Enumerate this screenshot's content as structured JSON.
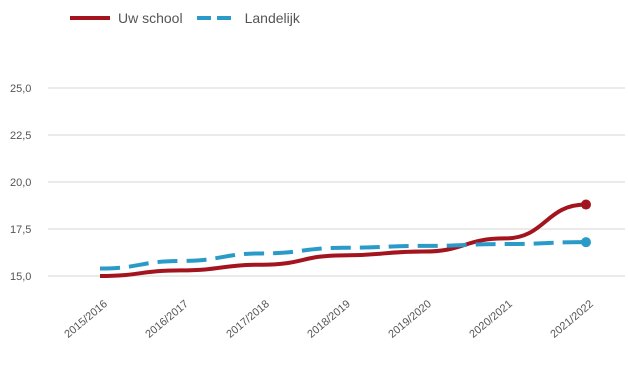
{
  "legend": {
    "school_label": "Uw school",
    "national_label": "Landelijk"
  },
  "colors": {
    "school": "#a3141f",
    "national": "#2a9bc9",
    "grid": "#e3e3e3",
    "tick_text": "#555555"
  },
  "chart_data": {
    "type": "line",
    "title": "",
    "xlabel": "",
    "ylabel": "",
    "categories": [
      "2015/2016",
      "2016/2017",
      "2017/2018",
      "2018/2019",
      "2019/2020",
      "2020/2021",
      "2021/2022"
    ],
    "ylim": [
      12.5,
      25.0
    ],
    "yticks": [
      "15,0",
      "17,5",
      "20,0",
      "22,5",
      "25,0"
    ],
    "ytick_values": [
      15.0,
      17.5,
      20.0,
      22.5,
      25.0
    ],
    "grid": true,
    "legend_position": "top-left",
    "series": [
      {
        "name": "Uw school",
        "style": "solid",
        "color": "#a3141f",
        "values": [
          15.0,
          15.3,
          15.6,
          16.1,
          16.3,
          17.0,
          18.8
        ]
      },
      {
        "name": "Landelijk",
        "style": "dashed",
        "color": "#2a9bc9",
        "values": [
          15.4,
          15.8,
          16.2,
          16.5,
          16.6,
          16.7,
          16.8
        ]
      }
    ]
  }
}
